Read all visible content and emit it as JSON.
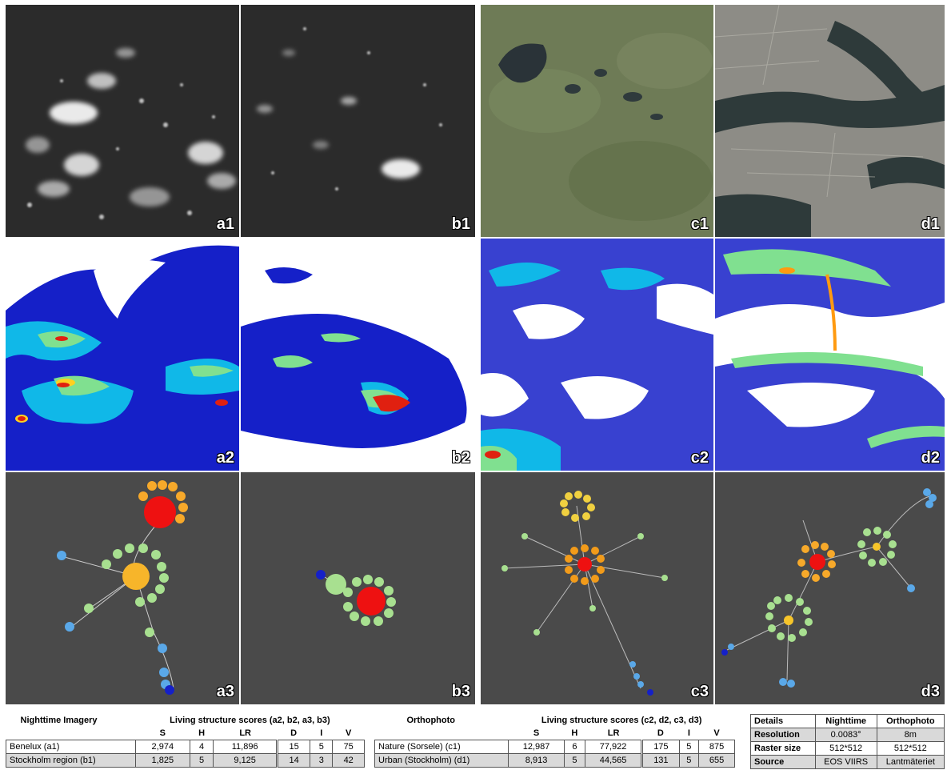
{
  "panel_labels": {
    "a1": "a1",
    "b1": "b1",
    "c1": "c1",
    "d1": "d1",
    "a2": "a2",
    "b2": "b2",
    "c2": "c2",
    "d2": "d2",
    "a3": "a3",
    "b3": "b3",
    "c3": "c3",
    "d3": "d3"
  },
  "table_night": {
    "title": "Nighttime Imagery",
    "scores_title": "Living structure scores (a2, b2, a3, b3)",
    "columns": [
      "S",
      "H",
      "LR",
      "D",
      "I",
      "V"
    ],
    "rows": [
      {
        "name": "Benelux (a1)",
        "values": [
          "2,974",
          "4",
          "11,896",
          "15",
          "5",
          "75"
        ]
      },
      {
        "name": "Stockholm region (b1)",
        "values": [
          "1,825",
          "5",
          "9,125",
          "14",
          "3",
          "42"
        ]
      }
    ]
  },
  "table_ortho": {
    "title": "Orthophoto",
    "scores_title": "Living structure scores (c2, d2, c3, d3)",
    "columns": [
      "S",
      "H",
      "LR",
      "D",
      "I",
      "V"
    ],
    "rows": [
      {
        "name": "Nature (Sorsele) (c1)",
        "values": [
          "12,987",
          "6",
          "77,922",
          "175",
          "5",
          "875"
        ]
      },
      {
        "name": "Urban (Stockholm) (d1)",
        "values": [
          "8,913",
          "5",
          "44,565",
          "131",
          "5",
          "655"
        ]
      }
    ]
  },
  "table_details": {
    "headers": [
      "Details",
      "Nighttime",
      "Orthophoto"
    ],
    "rows": [
      {
        "label": "Resolution",
        "night": "0.0083°",
        "ortho": "8m"
      },
      {
        "label": "Raster size",
        "night": "512*512",
        "ortho": "512*512"
      },
      {
        "label": "Source",
        "night": "EOS VIIRS",
        "ortho": "Lantmäteriet"
      }
    ]
  }
}
